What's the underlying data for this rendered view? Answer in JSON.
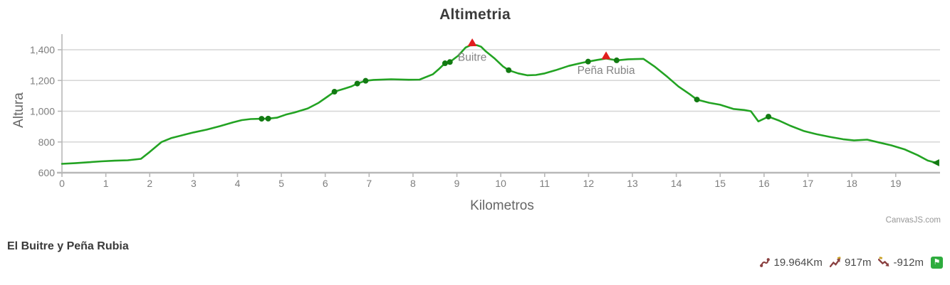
{
  "chart": {
    "title": "Altimetria",
    "watermark": "CanvasJS.com"
  },
  "chart_data": {
    "type": "line",
    "title": "Altimetria",
    "xlabel": "Kilometros",
    "ylabel": "Altura",
    "xlim": [
      0,
      20.01
    ],
    "ylim": [
      600,
      1460
    ],
    "grid": true,
    "legend": "none",
    "x_ticks": [
      0,
      1,
      2,
      3,
      4,
      5,
      6,
      7,
      8,
      9,
      10,
      11,
      12,
      13,
      14,
      15,
      16,
      17,
      18,
      19
    ],
    "y_ticks": [
      600,
      800,
      1000,
      1200,
      1400
    ],
    "y_tick_labels": [
      "600",
      "800",
      "1,000",
      "1,200",
      "1,400"
    ],
    "series": [
      {
        "name": "Altura",
        "points": [
          [
            0,
            658
          ],
          [
            0.3,
            662
          ],
          [
            0.6,
            668
          ],
          [
            0.9,
            674
          ],
          [
            1.2,
            678
          ],
          [
            1.5,
            681
          ],
          [
            1.8,
            690
          ],
          [
            2.0,
            735
          ],
          [
            2.27,
            800
          ],
          [
            2.5,
            826
          ],
          [
            2.8,
            848
          ],
          [
            3.0,
            862
          ],
          [
            3.3,
            880
          ],
          [
            3.6,
            903
          ],
          [
            3.9,
            928
          ],
          [
            4.1,
            942
          ],
          [
            4.3,
            949
          ],
          [
            4.55,
            951
          ],
          [
            4.7,
            952
          ],
          [
            4.9,
            958
          ],
          [
            5.1,
            978
          ],
          [
            5.3,
            992
          ],
          [
            5.6,
            1018
          ],
          [
            5.85,
            1055
          ],
          [
            6.05,
            1095
          ],
          [
            6.21,
            1127
          ],
          [
            6.45,
            1148
          ],
          [
            6.6,
            1162
          ],
          [
            6.73,
            1180
          ],
          [
            6.92,
            1198
          ],
          [
            7.1,
            1204
          ],
          [
            7.5,
            1208
          ],
          [
            7.9,
            1205
          ],
          [
            8.15,
            1206
          ],
          [
            8.45,
            1240
          ],
          [
            8.6,
            1277
          ],
          [
            8.73,
            1312
          ],
          [
            8.84,
            1320
          ],
          [
            9.03,
            1361
          ],
          [
            9.2,
            1415
          ],
          [
            9.3,
            1428
          ],
          [
            9.45,
            1430
          ],
          [
            9.55,
            1420
          ],
          [
            9.65,
            1392
          ],
          [
            9.85,
            1346
          ],
          [
            10.05,
            1292
          ],
          [
            10.18,
            1267
          ],
          [
            10.4,
            1246
          ],
          [
            10.6,
            1234
          ],
          [
            10.8,
            1236
          ],
          [
            11.0,
            1246
          ],
          [
            11.25,
            1267
          ],
          [
            11.55,
            1295
          ],
          [
            11.85,
            1315
          ],
          [
            11.99,
            1323
          ],
          [
            12.2,
            1334
          ],
          [
            12.4,
            1343
          ],
          [
            12.64,
            1331
          ],
          [
            12.9,
            1338
          ],
          [
            13.25,
            1341
          ],
          [
            13.5,
            1292
          ],
          [
            13.8,
            1223
          ],
          [
            14.05,
            1161
          ],
          [
            14.3,
            1112
          ],
          [
            14.47,
            1076
          ],
          [
            14.75,
            1055
          ],
          [
            15.0,
            1042
          ],
          [
            15.3,
            1015
          ],
          [
            15.55,
            1008
          ],
          [
            15.7,
            1000
          ],
          [
            15.87,
            934
          ],
          [
            16.1,
            965
          ],
          [
            16.35,
            938
          ],
          [
            16.6,
            905
          ],
          [
            16.9,
            872
          ],
          [
            17.2,
            850
          ],
          [
            17.5,
            833
          ],
          [
            17.8,
            818
          ],
          [
            18.05,
            810
          ],
          [
            18.35,
            815
          ],
          [
            18.6,
            798
          ],
          [
            18.9,
            778
          ],
          [
            19.2,
            752
          ],
          [
            19.5,
            714
          ],
          [
            19.73,
            679
          ],
          [
            19.85,
            670
          ],
          [
            19.96,
            665
          ]
        ]
      }
    ],
    "dot_markers": [
      [
        4.55,
        951
      ],
      [
        4.7,
        952
      ],
      [
        6.21,
        1127
      ],
      [
        6.73,
        1180
      ],
      [
        6.92,
        1198
      ],
      [
        8.73,
        1312
      ],
      [
        8.84,
        1320
      ],
      [
        10.18,
        1267
      ],
      [
        11.99,
        1323
      ],
      [
        12.64,
        1331
      ],
      [
        14.47,
        1076
      ],
      [
        16.1,
        965
      ]
    ],
    "end_marker": [
      19.96,
      665
    ],
    "peaks": [
      {
        "label": "Buitre",
        "x": 9.35,
        "y": 1428
      },
      {
        "label": "Peña Rubia",
        "x": 12.4,
        "y": 1343
      }
    ]
  },
  "footer": {
    "title": "El Buitre y Peña Rubia",
    "stats": [
      {
        "icon": "route-distance-icon",
        "value": "19.964Km"
      },
      {
        "icon": "total-ascent-icon",
        "value": "917m"
      },
      {
        "icon": "total-descent-icon",
        "value": "-912m"
      }
    ],
    "badge_icon": "trail-flag-badge-icon",
    "badge_glyph": "⚑"
  },
  "colors": {
    "line": "#23a323",
    "marker_dot": "#127a12",
    "peak_triangle": "#e11d1d",
    "grid": "#d6d6d6",
    "axis": "#b8b8b8",
    "tick_label": "#7e7e7e",
    "axis_title": "#666666",
    "chart_title": "#3b3b3b",
    "peak_label": "#848484",
    "watermark": "#979797",
    "footer_title": "#3a3a3a",
    "stat_text": "#4a4a4a",
    "stat_icon": "#8a4040",
    "stat_accent": "#c9a227",
    "badge_green": "#2eac3e"
  }
}
